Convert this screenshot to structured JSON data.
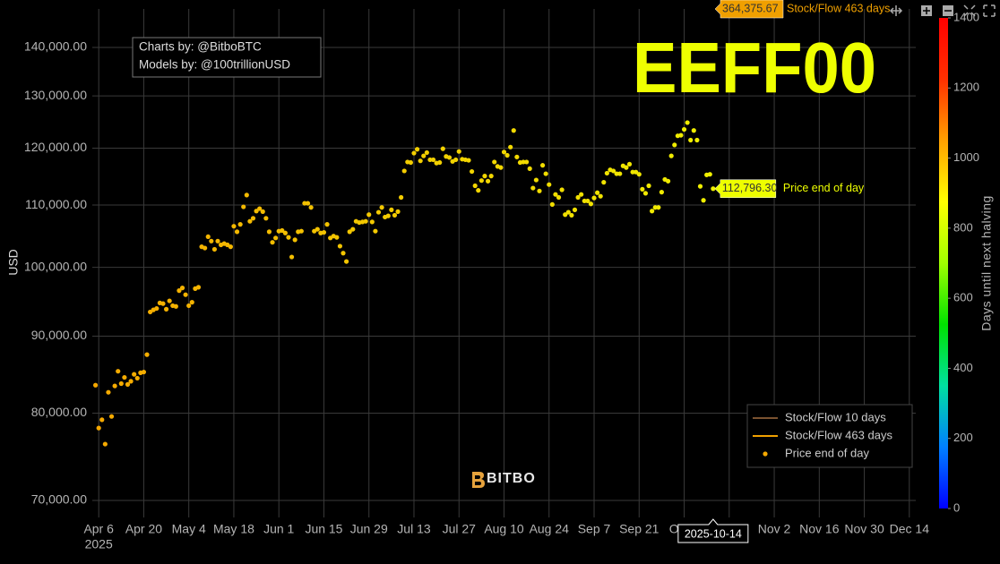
{
  "chart_data": {
    "type": "scatter",
    "log_y": true,
    "grid": true,
    "ylabel": "USD",
    "annotation": "EEFF00",
    "credits": [
      "Charts by: @BitboBTC",
      "Models by: @100trillionUSD"
    ],
    "watermark": "BITBO",
    "xlim": [
      "2025-04-04",
      "2025-12-16"
    ],
    "ylim": [
      68200,
      148500
    ],
    "yticks": [
      {
        "value": 70000,
        "label": "70,000.00"
      },
      {
        "value": 80000,
        "label": "80,000.00"
      },
      {
        "value": 90000,
        "label": "90,000.00"
      },
      {
        "value": 100000,
        "label": "100,000.00"
      },
      {
        "value": 110000,
        "label": "110,000.00"
      },
      {
        "value": 120000,
        "label": "120,000.00"
      },
      {
        "value": 130000,
        "label": "130,000.00"
      },
      {
        "value": 140000,
        "label": "140,000.00"
      }
    ],
    "xticks": [
      {
        "value": "2025-04-06",
        "label": "Apr 6"
      },
      {
        "value": "2025-04-20",
        "label": "Apr 20"
      },
      {
        "value": "2025-05-04",
        "label": "May 4"
      },
      {
        "value": "2025-05-18",
        "label": "May 18"
      },
      {
        "value": "2025-06-01",
        "label": "Jun 1"
      },
      {
        "value": "2025-06-15",
        "label": "Jun 15"
      },
      {
        "value": "2025-06-29",
        "label": "Jun 29"
      },
      {
        "value": "2025-07-13",
        "label": "Jul 13"
      },
      {
        "value": "2025-07-27",
        "label": "Jul 27"
      },
      {
        "value": "2025-08-10",
        "label": "Aug 10"
      },
      {
        "value": "2025-08-24",
        "label": "Aug 24"
      },
      {
        "value": "2025-09-07",
        "label": "Sep 7"
      },
      {
        "value": "2025-09-21",
        "label": "Sep 21"
      },
      {
        "value": "2025-10-05",
        "label": "Oct 5"
      },
      {
        "value": "2025-10-19",
        "label": "Oct 19"
      },
      {
        "value": "2025-11-02",
        "label": "Nov 2"
      },
      {
        "value": "2025-11-16",
        "label": "Nov 16"
      },
      {
        "value": "2025-11-30",
        "label": "Nov 30"
      },
      {
        "value": "2025-12-14",
        "label": "Dec 14"
      }
    ],
    "xtick_year": "2025",
    "legend_position": "bottom-right",
    "legend_lines": [
      {
        "name": "Stock/Flow 10 days",
        "color": "#7a5230"
      },
      {
        "name": "Stock/Flow 463 days",
        "color": "#f0a000"
      }
    ],
    "x": [
      "2025-04-05",
      "2025-04-06",
      "2025-04-07",
      "2025-04-08",
      "2025-04-09",
      "2025-04-10",
      "2025-04-11",
      "2025-04-12",
      "2025-04-13",
      "2025-04-14",
      "2025-04-15",
      "2025-04-16",
      "2025-04-17",
      "2025-04-18",
      "2025-04-19",
      "2025-04-20",
      "2025-04-21",
      "2025-04-22",
      "2025-04-23",
      "2025-04-24",
      "2025-04-25",
      "2025-04-26",
      "2025-04-27",
      "2025-04-28",
      "2025-04-29",
      "2025-04-30",
      "2025-05-01",
      "2025-05-02",
      "2025-05-03",
      "2025-05-04",
      "2025-05-05",
      "2025-05-06",
      "2025-05-07",
      "2025-05-08",
      "2025-05-09",
      "2025-05-10",
      "2025-05-11",
      "2025-05-12",
      "2025-05-13",
      "2025-05-14",
      "2025-05-15",
      "2025-05-16",
      "2025-05-17",
      "2025-05-18",
      "2025-05-19",
      "2025-05-20",
      "2025-05-21",
      "2025-05-22",
      "2025-05-23",
      "2025-05-24",
      "2025-05-25",
      "2025-05-26",
      "2025-05-27",
      "2025-05-28",
      "2025-05-29",
      "2025-05-30",
      "2025-05-31",
      "2025-06-01",
      "2025-06-02",
      "2025-06-03",
      "2025-06-04",
      "2025-06-05",
      "2025-06-06",
      "2025-06-07",
      "2025-06-08",
      "2025-06-09",
      "2025-06-10",
      "2025-06-11",
      "2025-06-12",
      "2025-06-13",
      "2025-06-14",
      "2025-06-15",
      "2025-06-16",
      "2025-06-17",
      "2025-06-18",
      "2025-06-19",
      "2025-06-20",
      "2025-06-21",
      "2025-06-22",
      "2025-06-23",
      "2025-06-24",
      "2025-06-25",
      "2025-06-26",
      "2025-06-27",
      "2025-06-28",
      "2025-06-29",
      "2025-06-30",
      "2025-07-01",
      "2025-07-02",
      "2025-07-03",
      "2025-07-04",
      "2025-07-05",
      "2025-07-06",
      "2025-07-07",
      "2025-07-08",
      "2025-07-09",
      "2025-07-10",
      "2025-07-11",
      "2025-07-12",
      "2025-07-13",
      "2025-07-14",
      "2025-07-15",
      "2025-07-16",
      "2025-07-17",
      "2025-07-18",
      "2025-07-19",
      "2025-07-20",
      "2025-07-21",
      "2025-07-22",
      "2025-07-23",
      "2025-07-24",
      "2025-07-25",
      "2025-07-26",
      "2025-07-27",
      "2025-07-28",
      "2025-07-29",
      "2025-07-30",
      "2025-07-31",
      "2025-08-01",
      "2025-08-02",
      "2025-08-03",
      "2025-08-04",
      "2025-08-05",
      "2025-08-06",
      "2025-08-07",
      "2025-08-08",
      "2025-08-09",
      "2025-08-10",
      "2025-08-11",
      "2025-08-12",
      "2025-08-13",
      "2025-08-14",
      "2025-08-15",
      "2025-08-16",
      "2025-08-17",
      "2025-08-18",
      "2025-08-19",
      "2025-08-20",
      "2025-08-21",
      "2025-08-22",
      "2025-08-23",
      "2025-08-24",
      "2025-08-25",
      "2025-08-26",
      "2025-08-27",
      "2025-08-28",
      "2025-08-29",
      "2025-08-30",
      "2025-08-31",
      "2025-09-01",
      "2025-09-02",
      "2025-09-03",
      "2025-09-04",
      "2025-09-05",
      "2025-09-06",
      "2025-09-07",
      "2025-09-08",
      "2025-09-09",
      "2025-09-10",
      "2025-09-11",
      "2025-09-12",
      "2025-09-13",
      "2025-09-14",
      "2025-09-15",
      "2025-09-16",
      "2025-09-17",
      "2025-09-18",
      "2025-09-19",
      "2025-09-20",
      "2025-09-21",
      "2025-09-22",
      "2025-09-23",
      "2025-09-24",
      "2025-09-25",
      "2025-09-26",
      "2025-09-27",
      "2025-09-28",
      "2025-09-29",
      "2025-09-30",
      "2025-10-01",
      "2025-10-02",
      "2025-10-03",
      "2025-10-04",
      "2025-10-05",
      "2025-10-06",
      "2025-10-07",
      "2025-10-08",
      "2025-10-09",
      "2025-10-10",
      "2025-10-11",
      "2025-10-12",
      "2025-10-13",
      "2025-10-14"
    ],
    "series": [
      {
        "name": "Price end of day",
        "color": "#f5a800",
        "color_end": "#f0f000",
        "values": [
          83500,
          78200,
          79200,
          76300,
          82600,
          79600,
          83400,
          85300,
          83700,
          84500,
          83600,
          84000,
          84900,
          84400,
          85100,
          85200,
          87500,
          93400,
          93700,
          93900,
          94700,
          94600,
          93800,
          95000,
          94300,
          94200,
          96500,
          96900,
          95900,
          94300,
          94800,
          96800,
          97000,
          103200,
          103000,
          104800,
          104100,
          102800,
          104100,
          103500,
          103700,
          103500,
          103200,
          106500,
          105600,
          106800,
          109700,
          111700,
          107300,
          107800,
          109000,
          109400,
          108900,
          107800,
          105600,
          103900,
          104600,
          105700,
          105800,
          105400,
          104700,
          101600,
          104300,
          105600,
          105700,
          110300,
          110300,
          109600,
          105700,
          106000,
          105400,
          105500,
          106800,
          104600,
          104900,
          104700,
          103300,
          102200,
          100900,
          105600,
          106000,
          107300,
          107100,
          107200,
          107300,
          108400,
          107200,
          105700,
          108800,
          109600,
          108000,
          108200,
          109200,
          108300,
          108900,
          111300,
          115900,
          117500,
          117400,
          119100,
          119800,
          117700,
          118600,
          119200,
          117900,
          117900,
          117300,
          117400,
          119900,
          118500,
          118300,
          117600,
          117900,
          119400,
          118000,
          117900,
          117800,
          115800,
          113300,
          112500,
          114200,
          115000,
          114100,
          115000,
          117500,
          116700,
          116500,
          119300,
          118700,
          120200,
          123300,
          118400,
          117400,
          117500,
          117500,
          116300,
          112900,
          114300,
          112400,
          116900,
          115400,
          113500,
          110100,
          111800,
          111300,
          112600,
          108400,
          108800,
          108300,
          109200,
          111300,
          111800,
          110700,
          110700,
          110200,
          111200,
          112100,
          111500,
          113900,
          115500,
          116100,
          115900,
          115400,
          115400,
          116800,
          116500,
          117100,
          115700,
          115700,
          115300,
          112700,
          112000,
          113300,
          109000,
          109600,
          109600,
          112200,
          114400,
          114100,
          118600,
          120600,
          122300,
          122400,
          123500,
          124800,
          121500,
          123300,
          121500,
          113200,
          110800,
          115200,
          115300,
          112796.3
        ]
      }
    ],
    "hover": {
      "x": "2025-10-14",
      "value": 112796.3,
      "label": "112,796.30",
      "name": "Price end of day"
    },
    "hover_top": {
      "value": 364375.67,
      "label": "364,375.67",
      "name": "Stock/Flow 463 days"
    },
    "colorbar": {
      "title": "Days until next halving",
      "lim": [
        0,
        1400
      ],
      "ticks": [
        0,
        200,
        400,
        600,
        800,
        1000,
        1200,
        1400
      ],
      "colors": [
        "#0000ff",
        "#0080ff",
        "#00e0a0",
        "#00e000",
        "#a0ff00",
        "#ffff00",
        "#ffa000",
        "#ff3000",
        "#ff0000"
      ]
    }
  }
}
